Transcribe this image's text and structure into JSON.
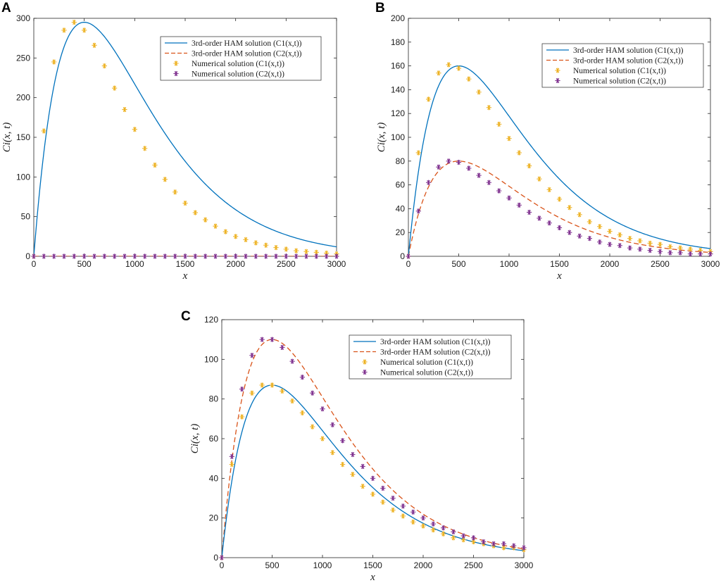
{
  "figure": {
    "legend_labels": [
      "3rd-order HAM solution (C1(x,t))",
      "3rd-order HAM solution (C2(x,t))",
      "Numerical solution (C1(x,t))",
      "Numerical solution (C2(x,t))"
    ],
    "colors": {
      "ham_c1": "#0072BD",
      "ham_c2": "#D95319",
      "num_c1": "#EDB120",
      "num_c2": "#7E2F8E"
    }
  },
  "chart_data": [
    {
      "panel": "A",
      "type": "line",
      "xlabel": "x",
      "ylabel": "Ci(x, t)",
      "xlim": [
        0,
        3000
      ],
      "ylim": [
        0,
        300
      ],
      "xticks": [
        0,
        500,
        1000,
        1500,
        2000,
        2500,
        3000
      ],
      "yticks": [
        0,
        50,
        100,
        150,
        200,
        250,
        300
      ],
      "ham": {
        "c1_peak": 295,
        "c2_peak": 0
      },
      "numerical": {
        "x": [
          0,
          100,
          200,
          300,
          400,
          500,
          600,
          700,
          800,
          900,
          1000,
          1100,
          1200,
          1300,
          1400,
          1500,
          1600,
          1700,
          1800,
          1900,
          2000,
          2100,
          2200,
          2300,
          2400,
          2500,
          2600,
          2700,
          2800,
          2900,
          3000
        ],
        "c1": [
          0,
          158,
          245,
          285,
          295,
          285,
          266,
          240,
          212,
          185,
          160,
          136,
          115,
          97,
          81,
          67,
          55,
          46,
          38,
          31,
          25,
          21,
          17,
          14,
          11,
          9,
          7,
          6,
          5,
          4,
          3
        ],
        "c2": [
          0,
          0,
          0,
          0,
          0,
          0,
          0,
          0,
          0,
          0,
          0,
          0,
          0,
          0,
          0,
          0,
          0,
          0,
          0,
          0,
          0,
          0,
          0,
          0,
          0,
          0,
          0,
          0,
          0,
          0,
          0
        ]
      }
    },
    {
      "panel": "B",
      "type": "line",
      "xlabel": "x",
      "ylabel": "Ci(x, t)",
      "xlim": [
        0,
        3000
      ],
      "ylim": [
        0,
        200
      ],
      "xticks": [
        0,
        500,
        1000,
        1500,
        2000,
        2500,
        3000
      ],
      "yticks": [
        0,
        20,
        40,
        60,
        80,
        100,
        120,
        140,
        160,
        180,
        200
      ],
      "ham": {
        "c1_peak": 160,
        "c2_peak": 80
      },
      "numerical": {
        "x": [
          0,
          100,
          200,
          300,
          400,
          500,
          600,
          700,
          800,
          900,
          1000,
          1100,
          1200,
          1300,
          1400,
          1500,
          1600,
          1700,
          1800,
          1900,
          2000,
          2100,
          2200,
          2300,
          2400,
          2500,
          2600,
          2700,
          2800,
          2900,
          3000
        ],
        "c1": [
          0,
          87,
          132,
          154,
          161,
          158,
          149,
          138,
          125,
          111,
          99,
          87,
          76,
          65,
          56,
          48,
          41,
          35,
          29,
          25,
          21,
          18,
          15,
          13,
          11,
          10,
          8,
          7,
          6,
          5,
          4
        ],
        "c2": [
          0,
          38,
          62,
          75,
          80,
          79,
          74,
          68,
          62,
          55,
          49,
          43,
          37,
          32,
          28,
          24,
          20,
          17,
          15,
          12,
          10,
          9,
          7,
          6,
          5,
          4,
          3,
          3,
          2,
          2,
          2
        ]
      }
    },
    {
      "panel": "C",
      "type": "line",
      "xlabel": "x",
      "ylabel": "Ci(x, t)",
      "xlim": [
        0,
        3000
      ],
      "ylim": [
        0,
        120
      ],
      "xticks": [
        0,
        500,
        1000,
        1500,
        2000,
        2500,
        3000
      ],
      "yticks": [
        0,
        20,
        40,
        60,
        80,
        100,
        120
      ],
      "ham": {
        "c1_peak": 87,
        "c2_peak": 110
      },
      "numerical": {
        "x": [
          0,
          100,
          200,
          300,
          400,
          500,
          600,
          700,
          800,
          900,
          1000,
          1100,
          1200,
          1300,
          1400,
          1500,
          1600,
          1700,
          1800,
          1900,
          2000,
          2100,
          2200,
          2300,
          2400,
          2500,
          2600,
          2700,
          2800,
          2900,
          3000
        ],
        "c1": [
          0,
          47,
          71,
          83,
          87,
          87,
          84,
          79,
          73,
          66,
          60,
          53,
          47,
          42,
          36,
          32,
          28,
          24,
          21,
          18,
          16,
          14,
          12,
          10,
          9,
          8,
          7,
          6,
          5,
          5,
          4
        ],
        "c2": [
          0,
          51,
          85,
          102,
          110,
          110,
          106,
          99,
          91,
          83,
          75,
          67,
          59,
          52,
          46,
          40,
          35,
          30,
          26,
          23,
          20,
          17,
          15,
          13,
          11,
          10,
          8,
          7,
          7,
          6,
          5
        ]
      }
    }
  ]
}
